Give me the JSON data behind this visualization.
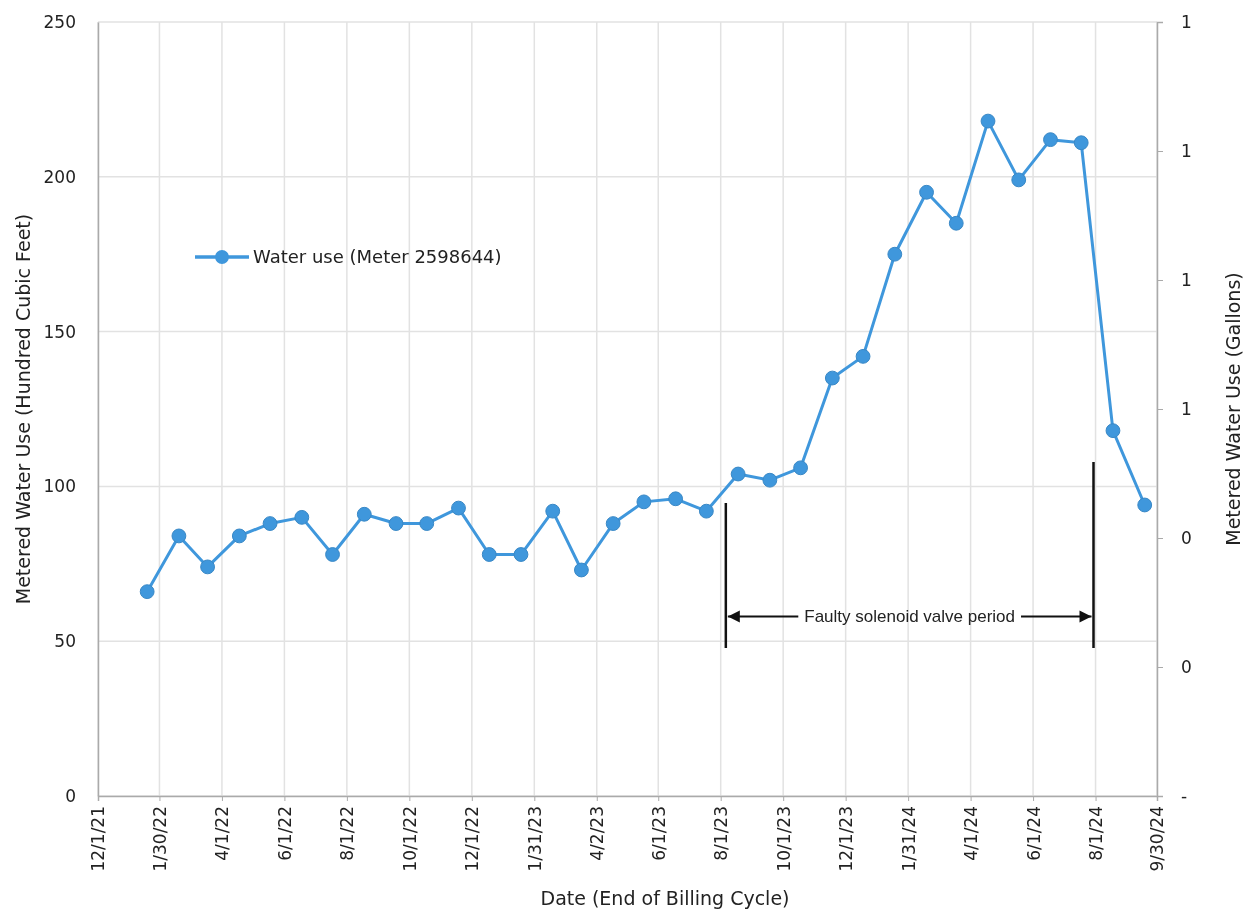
{
  "chart_data": {
    "type": "line",
    "xlabel": "Date (End of Billing Cycle)",
    "ylabel": "Metered Water Use (Hundred Cubic Feet)",
    "y2label": "Metered Water Use (Gallons)",
    "x": [
      "2022-01-18",
      "2022-02-18",
      "2022-03-18",
      "2022-04-18",
      "2022-05-18",
      "2022-06-18",
      "2022-07-18",
      "2022-08-18",
      "2022-09-18",
      "2022-10-18",
      "2022-11-18",
      "2022-12-18",
      "2023-01-18",
      "2023-02-18",
      "2023-03-18",
      "2023-04-18",
      "2023-05-18",
      "2023-06-18",
      "2023-07-18",
      "2023-08-18",
      "2023-09-18",
      "2023-10-18",
      "2023-11-18",
      "2023-12-18",
      "2024-01-18",
      "2024-02-18",
      "2024-03-18",
      "2024-04-18",
      "2024-05-18",
      "2024-06-18",
      "2024-07-18",
      "2024-08-18",
      "2024-09-18"
    ],
    "series": [
      {
        "name": "Water use (Meter 2598644)",
        "color": "#3f97dc",
        "values": [
          66,
          84,
          74,
          84,
          88,
          90,
          78,
          91,
          88,
          88,
          93,
          78,
          78,
          92,
          73,
          88,
          95,
          96,
          92,
          104,
          102,
          106,
          135,
          142,
          175,
          195,
          185,
          218,
          199,
          212,
          211,
          118,
          94
        ]
      }
    ],
    "marker": "circle",
    "xlim": [
      "2021-12-01",
      "2024-09-30"
    ],
    "xticks": [
      {
        "value": "2021-12-01",
        "label": "12/1/21"
      },
      {
        "value": "2022-01-30",
        "label": "1/30/22"
      },
      {
        "value": "2022-04-01",
        "label": "4/1/22"
      },
      {
        "value": "2022-06-01",
        "label": "6/1/22"
      },
      {
        "value": "2022-08-01",
        "label": "8/1/22"
      },
      {
        "value": "2022-10-01",
        "label": "10/1/22"
      },
      {
        "value": "2022-12-01",
        "label": "12/1/22"
      },
      {
        "value": "2023-01-31",
        "label": "1/31/23"
      },
      {
        "value": "2023-04-02",
        "label": "4/2/23"
      },
      {
        "value": "2023-06-01",
        "label": "6/1/23"
      },
      {
        "value": "2023-08-01",
        "label": "8/1/23"
      },
      {
        "value": "2023-10-01",
        "label": "10/1/23"
      },
      {
        "value": "2023-12-01",
        "label": "12/1/23"
      },
      {
        "value": "2024-01-31",
        "label": "1/31/24"
      },
      {
        "value": "2024-04-01",
        "label": "4/1/24"
      },
      {
        "value": "2024-06-01",
        "label": "6/1/24"
      },
      {
        "value": "2024-08-01",
        "label": "8/1/24"
      },
      {
        "value": "2024-09-30",
        "label": "9/30/24"
      }
    ],
    "ylim": [
      0,
      250
    ],
    "yticks": [
      0,
      50,
      100,
      150,
      200,
      250
    ],
    "y2lim": [
      -0.1,
      1.1
    ],
    "y2ticks": [
      {
        "value": -0.1,
        "label": "-"
      },
      {
        "value": 0.1,
        "label": "0"
      },
      {
        "value": 0.3,
        "label": "0"
      },
      {
        "value": 0.5,
        "label": "1"
      },
      {
        "value": 0.7,
        "label": "1"
      },
      {
        "value": 0.9,
        "label": "1"
      },
      {
        "value": 1.1,
        "label": "1"
      }
    ],
    "ref_lines": [
      {
        "axis": "x",
        "value": "2023-08-06",
        "color": "#111111"
      },
      {
        "axis": "x",
        "value": "2024-07-30",
        "color": "#111111"
      }
    ],
    "annotations": [
      {
        "text": "Faulty solenoid valve period",
        "x": "2023-08-06",
        "y": 58
      }
    ],
    "grid": true,
    "legend": "top left"
  }
}
